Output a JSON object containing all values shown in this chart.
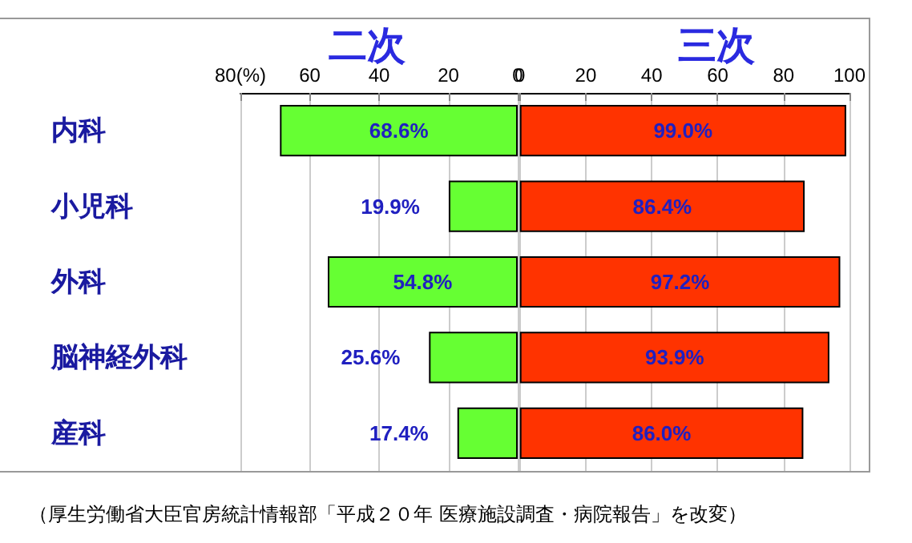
{
  "chart_data": [
    {
      "type": "bar",
      "orientation": "horizontal",
      "title": "二次",
      "categories": [
        "内科",
        "小児科",
        "外科",
        "脳神経外科",
        "産科"
      ],
      "values": [
        68.6,
        19.9,
        54.8,
        25.6,
        17.4
      ],
      "value_labels": [
        "68.6%",
        "19.9%",
        "54.8%",
        "25.6%",
        "17.4%"
      ],
      "color": "#66ff33",
      "xlim": [
        80,
        0
      ],
      "xticks": [
        {
          "value": 80,
          "label": "80(%)"
        },
        60,
        40,
        20,
        0
      ],
      "grid": "x"
    },
    {
      "type": "bar",
      "orientation": "horizontal",
      "title": "三次",
      "categories": [
        null,
        null,
        null,
        null,
        null
      ],
      "values": [
        99.0,
        86.4,
        97.2,
        93.9,
        86.0
      ],
      "value_labels": [
        "99.0%",
        "86.4%",
        "97.2%",
        "93.9%",
        "86.0%"
      ],
      "color": "#ff3300",
      "xlim": [
        0,
        100
      ],
      "xticks": [
        0,
        20,
        40,
        60,
        80,
        100
      ],
      "grid": "x",
      "tick_labels": "x",
      "annotations": [
        "（厚生労働省大臣官房統計情報部「平成２０年 医療施設調査・病院報告」を改変）"
      ]
    }
  ]
}
